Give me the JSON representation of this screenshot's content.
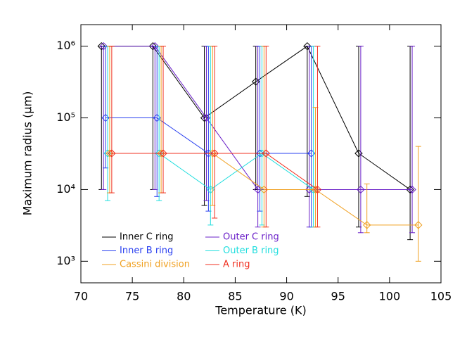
{
  "chart_data": {
    "type": "scatter",
    "xlabel": "Temperature (K)",
    "ylabel": "Maximum radius (μm)",
    "xlim": [
      70,
      105
    ],
    "xticks": [
      70,
      75,
      80,
      85,
      90,
      95,
      100,
      105
    ],
    "ylim": [
      500,
      2000000
    ],
    "ylog": true,
    "yticks": [
      {
        "value": 1000,
        "label": "10³"
      },
      {
        "value": 10000,
        "label": "10⁴"
      },
      {
        "value": 100000,
        "label": "10⁵"
      },
      {
        "value": 1000000,
        "label": "10⁶"
      }
    ],
    "series": [
      {
        "name": "Inner C ring",
        "color": "#000000",
        "x": [
          72.0,
          77.0,
          82.0,
          87.0,
          92.0,
          97.0,
          102.0
        ],
        "values": [
          1000000,
          1000000,
          100000,
          320000,
          1000000,
          32000,
          10000
        ],
        "err_low": [
          10000,
          10000,
          6000,
          10000,
          8000,
          3000,
          2000
        ],
        "err_high": [
          1000000,
          1000000,
          1000000,
          1000000,
          1000000,
          1000000,
          1000000
        ]
      },
      {
        "name": "Outer C ring",
        "color": "#6a20c8",
        "x": [
          72.2,
          77.2,
          82.2,
          87.2,
          92.2,
          97.2,
          102.2
        ],
        "values": [
          1000000,
          1000000,
          100000,
          10000,
          10000,
          10000,
          10000
        ],
        "err_low": [
          10000,
          10000,
          7000,
          3000,
          3000,
          2500,
          2500
        ],
        "err_high": [
          1000000,
          1000000,
          1000000,
          1000000,
          1000000,
          1000000,
          1000000
        ]
      },
      {
        "name": "Inner B ring",
        "color": "#2a40f0",
        "x": [
          72.4,
          77.4,
          82.4,
          87.4,
          92.4
        ],
        "values": [
          100000,
          100000,
          32000,
          32000,
          32000
        ],
        "err_low": [
          20000,
          8000,
          5000,
          5000,
          3000
        ],
        "err_high": [
          1000000,
          1000000,
          1000000,
          1000000,
          1000000
        ]
      },
      {
        "name": "Outer B ring",
        "color": "#20dede",
        "x": [
          72.6,
          77.6,
          82.6,
          87.6,
          92.6
        ],
        "values": [
          32000,
          32000,
          10000,
          32000,
          10000
        ],
        "err_low": [
          7000,
          7000,
          3200,
          3200,
          3000
        ],
        "err_high": [
          1000000,
          1000000,
          1000000,
          1000000,
          1000000
        ]
      },
      {
        "name": "Cassini division",
        "color": "#f0a020",
        "x": [
          72.8,
          77.8,
          82.8,
          87.8,
          92.8,
          97.8,
          102.8
        ],
        "values": [
          32000,
          32000,
          32000,
          10000,
          10000,
          3200,
          3200
        ],
        "err_low": [
          9000,
          9000,
          6000,
          3000,
          3000,
          2500,
          1000
        ],
        "err_high": [
          1000000,
          1000000,
          1000000,
          1000000,
          140000,
          12000,
          40000
        ]
      },
      {
        "name": "A ring",
        "color": "#f03020",
        "x": [
          73.0,
          78.0,
          83.0,
          88.0,
          93.0
        ],
        "values": [
          32000,
          32000,
          32000,
          32000,
          10000
        ],
        "err_low": [
          9000,
          9000,
          4000,
          3000,
          3000
        ],
        "err_high": [
          1000000,
          1000000,
          1000000,
          1000000,
          1000000
        ]
      }
    ]
  }
}
